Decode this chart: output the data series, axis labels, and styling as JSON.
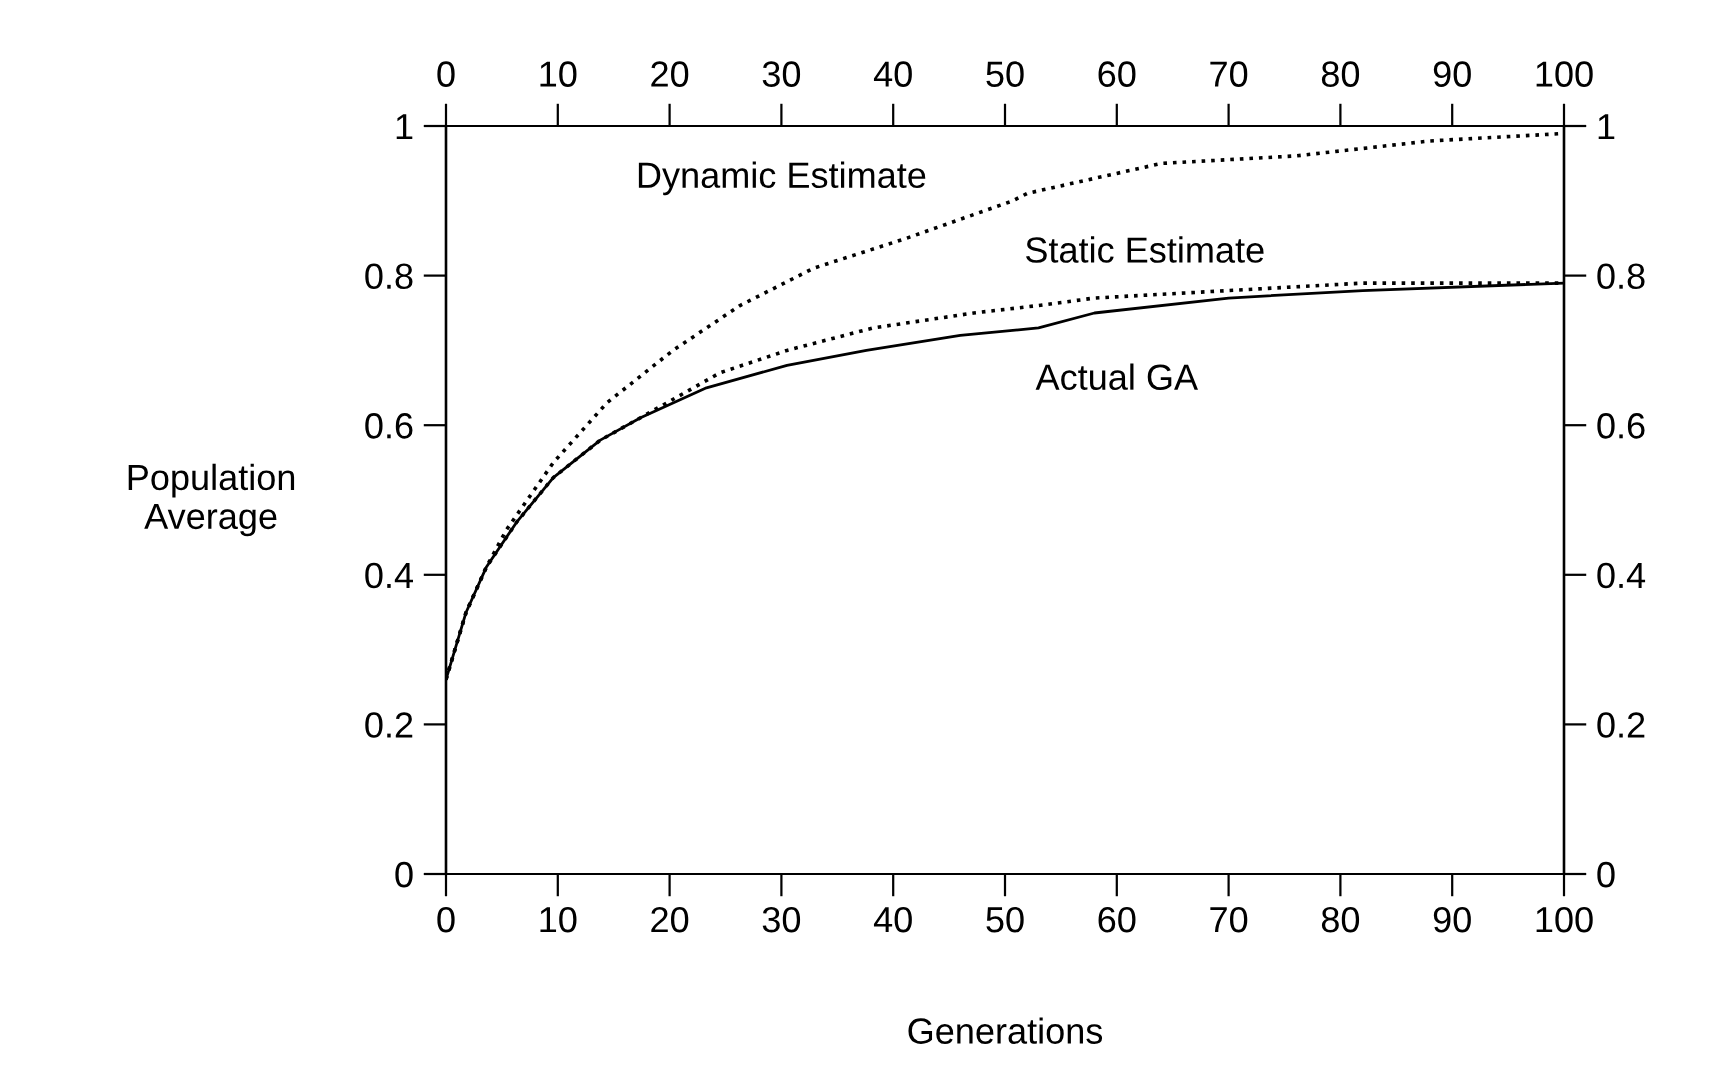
{
  "chart_data": {
    "type": "line",
    "xlabel": "Generations",
    "ylabel": "Population\nAverage",
    "xlim": [
      0,
      100
    ],
    "ylim": [
      0,
      1
    ],
    "xticks": [
      0,
      10,
      20,
      30,
      40,
      50,
      60,
      70,
      80,
      90,
      100
    ],
    "yticks": [
      0,
      0.2,
      0.4,
      0.6,
      0.8,
      1
    ],
    "x2lim": [
      0,
      100
    ],
    "x2ticks": [
      0,
      10,
      20,
      30,
      40,
      50,
      60,
      70,
      80,
      90,
      100
    ],
    "y2lim": [
      0,
      1
    ],
    "y2ticks": [
      0,
      0.2,
      0.4,
      0.6,
      0.8,
      1
    ],
    "grid": false,
    "legend": false,
    "marker": "none",
    "series": [
      {
        "name": "Dynamic Estimate",
        "color": "#000000",
        "line_style": "dotted",
        "x": [
          0,
          1.8,
          3.6,
          5.4,
          9.6,
          14.4,
          20.3,
          26.3,
          32.9,
          41.2,
          50.7,
          52,
          64,
          76,
          88,
          100
        ],
        "values": [
          0.26,
          0.35,
          0.41,
          0.46,
          0.55,
          0.63,
          0.7,
          0.76,
          0.81,
          0.85,
          0.9,
          0.91,
          0.95,
          0.96,
          0.98,
          0.99
        ]
      },
      {
        "name": "Static Estimate",
        "color": "#000000",
        "line_style": "dotted",
        "x": [
          0,
          1.8,
          3.6,
          6.3,
          9.6,
          13.8,
          17.4,
          24.5,
          30.5,
          38.2,
          47.2,
          53,
          58,
          70,
          82,
          100
        ],
        "values": [
          0.26,
          0.35,
          0.41,
          0.47,
          0.53,
          0.58,
          0.61,
          0.67,
          0.7,
          0.73,
          0.75,
          0.76,
          0.77,
          0.78,
          0.79,
          0.79
        ]
      },
      {
        "name": "Actual GA",
        "color": "#000000",
        "line_style": "solid",
        "x": [
          0,
          1.8,
          3.6,
          6.3,
          9.6,
          13.8,
          17.4,
          23.3,
          30.5,
          37.6,
          46,
          53,
          58,
          70,
          82,
          100
        ],
        "values": [
          0.26,
          0.35,
          0.41,
          0.47,
          0.53,
          0.58,
          0.61,
          0.65,
          0.68,
          0.7,
          0.72,
          0.73,
          0.75,
          0.77,
          0.78,
          0.79
        ]
      }
    ]
  }
}
